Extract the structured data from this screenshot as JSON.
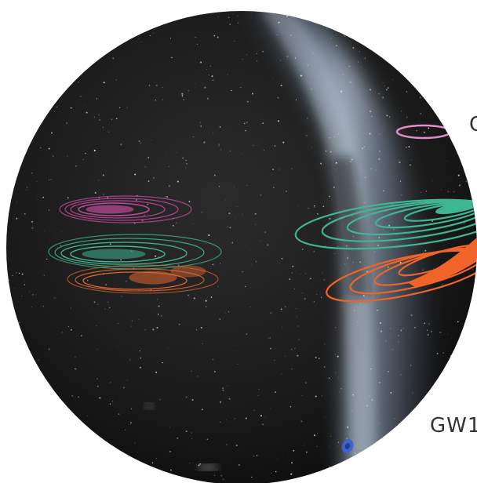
{
  "labels": {
    "top_right": "C",
    "bottom_right": "GW1"
  },
  "colors": {
    "background": "#ffffff",
    "sky": "#141414",
    "milky_way": "#8a9bb0",
    "magenta": "#c04a9a",
    "pink": "#e48ac8",
    "green": "#3fb592",
    "orange": "#f0642a",
    "blue": "#3b63d6"
  }
}
